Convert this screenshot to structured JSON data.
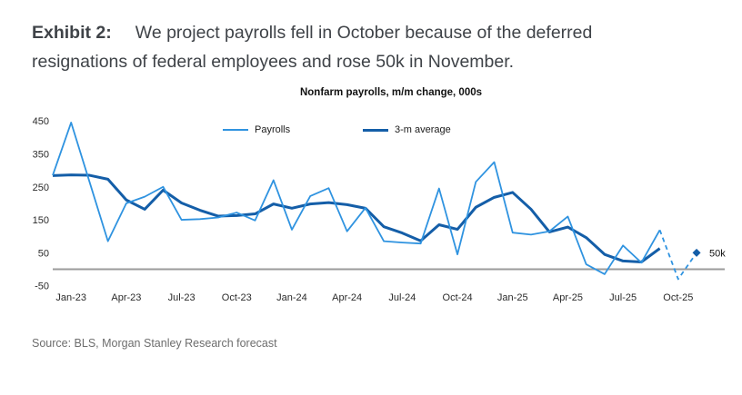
{
  "header": {
    "label": "Exhibit 2:",
    "text": "We project payrolls fell in October because of the deferred resignations of federal employees and rose 50k in November."
  },
  "source": "Source: BLS, Morgan Stanley Research forecast",
  "chart_data": {
    "type": "line",
    "title": "Nonfarm payrolls, m/m change, 000s",
    "xlabel": "",
    "ylabel": "",
    "ylim": [
      -50,
      450
    ],
    "yticks": [
      450,
      350,
      250,
      150,
      50,
      -50
    ],
    "grid": false,
    "legend_position": "top",
    "axis_line_color": "#9b9b9b",
    "months": [
      "Dec-22",
      "Jan-23",
      "Feb-23",
      "Mar-23",
      "Apr-23",
      "May-23",
      "Jun-23",
      "Jul-23",
      "Aug-23",
      "Sep-23",
      "Oct-23",
      "Nov-23",
      "Dec-23",
      "Jan-24",
      "Feb-24",
      "Mar-24",
      "Apr-24",
      "May-24",
      "Jun-24",
      "Jul-24",
      "Aug-24",
      "Sep-24",
      "Oct-24",
      "Nov-24",
      "Dec-24",
      "Jan-25",
      "Feb-25",
      "Mar-25",
      "Apr-25",
      "May-25",
      "Jun-25",
      "Jul-25",
      "Aug-25",
      "Sep-25",
      "Oct-25",
      "Nov-25"
    ],
    "x_tick_labels": [
      "Jan-23",
      "Apr-23",
      "Jul-23",
      "Oct-23",
      "Jan-24",
      "Apr-24",
      "Jul-24",
      "Oct-24",
      "Jan-25",
      "Apr-25",
      "Jul-25",
      "Oct-25"
    ],
    "series": [
      {
        "name": "Payrolls",
        "color": "#2f93e0",
        "line_width": 1.8,
        "forecast_start_index": 33,
        "forecast_style": "dashed",
        "values": [
          285,
          445,
          265,
          85,
          200,
          220,
          250,
          150,
          152,
          157,
          172,
          148,
          270,
          120,
          222,
          246,
          115,
          186,
          85,
          81,
          78,
          245,
          45,
          265,
          325,
          111,
          105,
          115,
          160,
          15,
          -15,
          72,
          20,
          119,
          -30,
          50
        ]
      },
      {
        "name": "3-m average",
        "color": "#145ea8",
        "line_width": 3,
        "values": [
          284,
          286,
          285,
          273,
          210,
          182,
          240,
          201,
          179,
          161,
          163,
          168,
          198,
          185,
          198,
          202,
          196,
          185,
          129,
          110,
          86,
          135,
          121,
          188,
          218,
          233,
          182,
          113,
          128,
          96,
          45,
          25,
          22,
          63,
          null,
          null
        ]
      }
    ],
    "annotation": {
      "label": "50k",
      "month": "Nov-25",
      "value": 50,
      "marker": "diamond",
      "marker_color": "#145ea8"
    }
  }
}
